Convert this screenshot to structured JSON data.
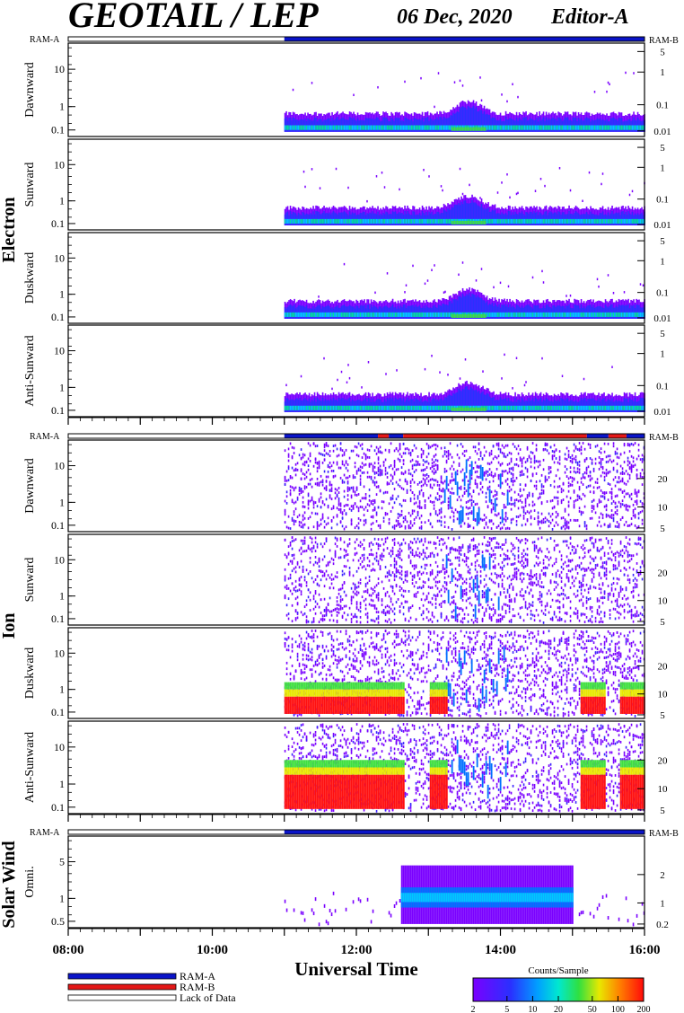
{
  "header": {
    "title": "GEOTAIL / LEP",
    "date": "06 Dec, 2020",
    "editor": "Editor-A"
  },
  "colors": {
    "ram_a": "#0a14c8",
    "ram_b": "#e41818",
    "lack": "#ffffff",
    "spectrogram": [
      "#7a00ff",
      "#3c22ff",
      "#0070ff",
      "#00c8ff",
      "#00e0a0",
      "#40e040",
      "#e8e800",
      "#ff8000",
      "#ff1010"
    ]
  },
  "legend": {
    "ram_a": "RAM-A",
    "ram_b": "RAM-B",
    "lack": "Lack of Data"
  },
  "colorbar": {
    "title": "Counts/Sample",
    "ticks": [
      "2",
      "5",
      "10",
      "20",
      "50",
      "100",
      "200"
    ]
  },
  "chart_data": {
    "type": "heatmap",
    "xlabel": "Universal Time",
    "x_ticks": [
      "08:00",
      "10:00",
      "12:00",
      "14:00",
      "16:00"
    ],
    "xlim_hours": [
      8,
      16
    ],
    "data_start_hour": 11.0,
    "groups": [
      {
        "label": "Electron",
        "mode_bar": {
          "left_label": "RAM-A",
          "right_label": "RAM-B",
          "segments": [
            [
              8,
              11,
              "lack"
            ],
            [
              11,
              16,
              "ram_a"
            ]
          ]
        },
        "panels": [
          {
            "label": "Dawnward",
            "left_ticks": [
              "10",
              "1",
              "0.1"
            ],
            "right_ticks": [
              "5",
              "1",
              "0.1",
              "0.01"
            ]
          },
          {
            "label": "Sunward",
            "left_ticks": [
              "10",
              "1",
              "0.1"
            ],
            "right_ticks": [
              "5",
              "1",
              "0.1",
              "0.01"
            ]
          },
          {
            "label": "Duskward",
            "left_ticks": [
              "10",
              "1",
              "0.1"
            ],
            "right_ticks": [
              "5",
              "1",
              "0.1",
              "0.01"
            ]
          },
          {
            "label": "Anti-Sunward",
            "left_ticks": [
              "10",
              "1",
              "0.1"
            ],
            "right_ticks": [
              "5",
              "1",
              "0.1",
              "0.01"
            ]
          }
        ]
      },
      {
        "label": "Ion",
        "mode_bar": {
          "left_label": "RAM-A",
          "right_label": "RAM-B",
          "segments": [
            [
              8,
              11,
              "lack"
            ],
            [
              11,
              12.3,
              "ram_a"
            ],
            [
              12.3,
              12.45,
              "ram_b"
            ],
            [
              12.45,
              12.65,
              "ram_a"
            ],
            [
              12.65,
              15.2,
              "ram_b"
            ],
            [
              15.2,
              15.5,
              "ram_a"
            ],
            [
              15.5,
              15.75,
              "ram_b"
            ],
            [
              15.75,
              16,
              "ram_a"
            ]
          ]
        },
        "panels": [
          {
            "label": "Dawnward",
            "left_ticks": [
              "10",
              "1",
              "0.1"
            ],
            "right_ticks": [
              "20",
              "10",
              "5"
            ]
          },
          {
            "label": "Sunward",
            "left_ticks": [
              "10",
              "1",
              "0.1"
            ],
            "right_ticks": [
              "20",
              "10",
              "5"
            ]
          },
          {
            "label": "Duskward",
            "left_ticks": [
              "10",
              "1",
              "0.1"
            ],
            "right_ticks": [
              "20",
              "10",
              "5"
            ]
          },
          {
            "label": "Anti-Sunward",
            "left_ticks": [
              "10",
              "1",
              "0.1"
            ],
            "right_ticks": [
              "20",
              "10",
              "5"
            ]
          }
        ]
      },
      {
        "label": "Solar Wind",
        "mode_bar": {
          "left_label": "RAM-A",
          "right_label": "RAM-B",
          "segments": [
            [
              8,
              11,
              "lack"
            ],
            [
              11,
              16,
              "ram_a"
            ]
          ]
        },
        "panels": [
          {
            "label": "Omni.",
            "left_ticks": [
              "5",
              "1",
              "0.5"
            ],
            "right_ticks": [
              "2",
              "1",
              "0.2"
            ]
          }
        ]
      }
    ]
  }
}
